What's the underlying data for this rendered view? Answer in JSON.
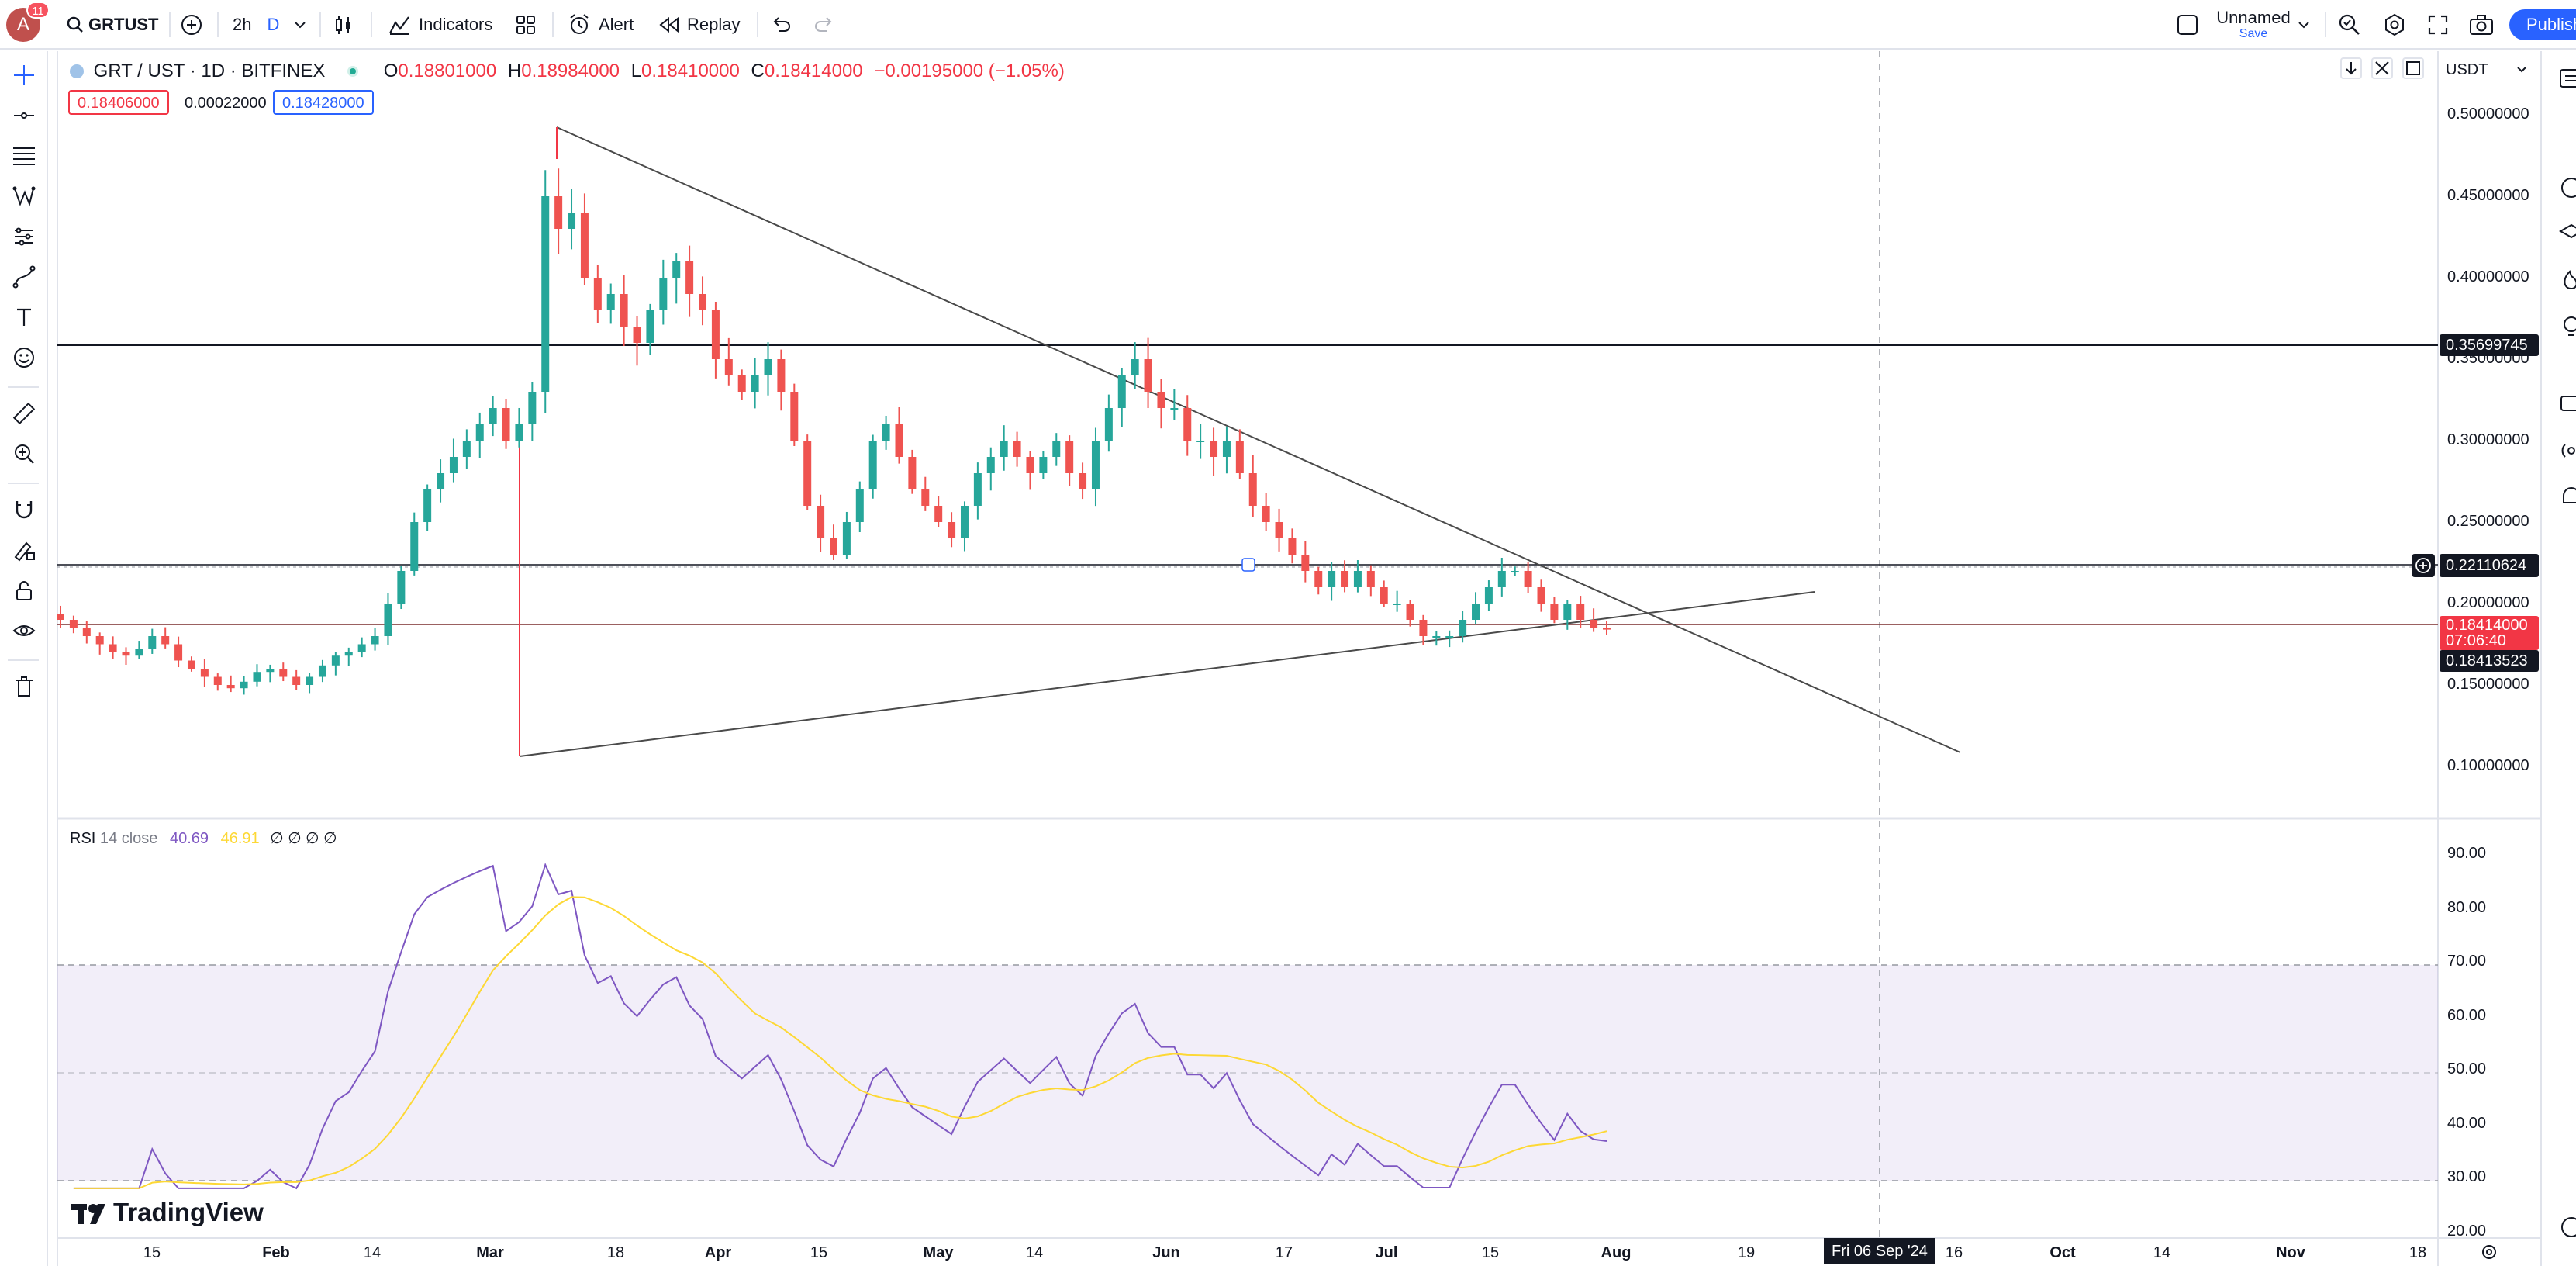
{
  "topbar": {
    "avatar_letter": "A",
    "notification_count": "11",
    "symbol": "GRTUST",
    "interval": "2h",
    "interval_mode": "D",
    "indicators_label": "Indicators",
    "alert_label": "Alert",
    "replay_label": "Replay",
    "layout_name": "Unnamed",
    "layout_status": "Save",
    "publish_label": "Publish"
  },
  "legend": {
    "title": "GRT / UST · 1D · BITFINEX",
    "o_key": "O",
    "o_val": "0.18801000",
    "h_key": "H",
    "h_val": "0.18984000",
    "l_key": "L",
    "l_val": "0.18410000",
    "c_key": "C",
    "c_val": "0.18414000",
    "change": "−0.00195000 (−1.05%)",
    "bid": "0.18406000",
    "spread": "0.00022000",
    "ask": "0.18428000"
  },
  "currency": "USDT",
  "price_axis": {
    "labels": [
      "0.50000000",
      "0.45000000",
      "0.40000000",
      "0.35000000",
      "0.30000000",
      "0.25000000",
      "0.20000000",
      "0.15000000",
      "0.10000000"
    ],
    "tag_hline1": "0.35699745",
    "tag_hline2": "0.22110624",
    "tag_last_price": "0.18414000",
    "tag_countdown": "07:06:40",
    "tag_hline3": "0.18413523"
  },
  "rsi": {
    "name": "RSI",
    "params": "14 close",
    "value": "40.69",
    "ma_value": "46.91",
    "extra": "∅ ∅ ∅ ∅",
    "axis": [
      "90.00",
      "80.00",
      "70.00",
      "60.00",
      "50.00",
      "40.00",
      "30.00",
      "20.00"
    ]
  },
  "time_axis": {
    "labels": [
      "15",
      "Feb",
      "14",
      "Mar",
      "18",
      "Apr",
      "15",
      "May",
      "14",
      "Jun",
      "17",
      "Jul",
      "15",
      "Aug",
      "19",
      "16",
      "Oct",
      "14",
      "Nov",
      "18"
    ],
    "crosshair_date": "Fri 06 Sep '24"
  },
  "brand": "TradingView",
  "chart_data": {
    "type": "candlestick",
    "symbol": "GRT / UST",
    "interval": "1D",
    "exchange": "BITFINEX",
    "ylim": [
      0.08,
      0.52
    ],
    "close_series_approx": [
      0.19,
      0.185,
      0.18,
      0.175,
      0.17,
      0.168,
      0.172,
      0.18,
      0.175,
      0.165,
      0.16,
      0.155,
      0.15,
      0.148,
      0.152,
      0.158,
      0.16,
      0.155,
      0.15,
      0.155,
      0.162,
      0.168,
      0.17,
      0.175,
      0.18,
      0.2,
      0.22,
      0.25,
      0.27,
      0.28,
      0.29,
      0.3,
      0.31,
      0.32,
      0.3,
      0.31,
      0.33,
      0.45,
      0.43,
      0.44,
      0.4,
      0.38,
      0.39,
      0.37,
      0.36,
      0.38,
      0.4,
      0.41,
      0.39,
      0.38,
      0.35,
      0.34,
      0.33,
      0.34,
      0.35,
      0.33,
      0.3,
      0.26,
      0.24,
      0.23,
      0.25,
      0.27,
      0.3,
      0.31,
      0.29,
      0.27,
      0.26,
      0.25,
      0.24,
      0.26,
      0.28,
      0.29,
      0.3,
      0.29,
      0.28,
      0.29,
      0.3,
      0.28,
      0.27,
      0.3,
      0.32,
      0.34,
      0.35,
      0.33,
      0.32,
      0.32,
      0.3,
      0.3,
      0.29,
      0.3,
      0.28,
      0.26,
      0.25,
      0.24,
      0.23,
      0.22,
      0.21,
      0.22,
      0.21,
      0.22,
      0.21,
      0.2,
      0.2,
      0.19,
      0.18,
      0.18,
      0.18,
      0.19,
      0.2,
      0.21,
      0.22,
      0.22,
      0.21,
      0.2,
      0.19,
      0.2,
      0.19,
      0.185,
      0.184
    ],
    "horizontal_lines": [
      0.35699745,
      0.22110624,
      0.18413523
    ],
    "rsi": {
      "length": 14,
      "source": "close",
      "value": 40.69,
      "ma": 46.91,
      "bands": [
        70,
        50,
        30
      ],
      "ylim": [
        20,
        95
      ]
    }
  }
}
